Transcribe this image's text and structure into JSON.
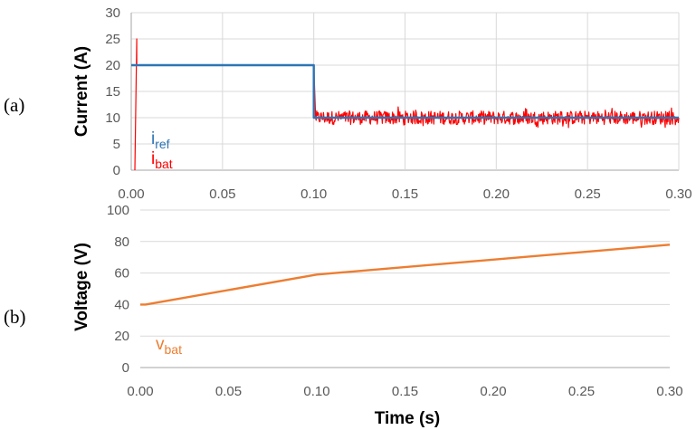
{
  "colors": {
    "i_ref": "#2E75B6",
    "i_bat": "#FF0000",
    "v_bat": "#ED7D31",
    "grid": "#D9D9D9",
    "axis": "#A6A6A6"
  },
  "chart_data": [
    {
      "type": "line",
      "panel_label": "(a)",
      "title": "",
      "xlabel": "",
      "ylabel": "Current (A)",
      "xlim": [
        0,
        0.3
      ],
      "ylim": [
        0,
        30
      ],
      "x_ticks": [
        "0.00",
        "0.05",
        "0.10",
        "0.15",
        "0.20",
        "0.25",
        "0.30"
      ],
      "y_ticks": [
        "0",
        "5",
        "10",
        "15",
        "20",
        "25",
        "30"
      ],
      "grid": true,
      "legend_placement": "bottom-left",
      "series": [
        {
          "name": "i",
          "name_sub": "ref",
          "color": "#2E75B6",
          "x": [
            0.0,
            0.1,
            0.1,
            0.3
          ],
          "y": [
            20,
            20,
            10,
            10
          ]
        },
        {
          "name": "i",
          "name_sub": "bat",
          "color": "#FF0000",
          "x": [
            0.002,
            0.002,
            0.003,
            0.003,
            0.1,
            0.101,
            0.3
          ],
          "y": [
            0,
            0,
            25,
            20,
            20,
            10,
            10
          ],
          "noise_band": [
            {
              "x_start": 0.003,
              "x_end": 0.03,
              "amplitude": 1.8
            },
            {
              "x_start": 0.03,
              "x_end": 0.1,
              "amplitude": 1.0
            },
            {
              "x_start": 0.1,
              "x_end": 0.3,
              "amplitude": 1.3
            }
          ]
        }
      ]
    },
    {
      "type": "line",
      "panel_label": "(b)",
      "title": "",
      "xlabel": "Time (s)",
      "ylabel": "Voltage (V)",
      "xlim": [
        0,
        0.3
      ],
      "ylim": [
        0,
        100
      ],
      "x_ticks": [
        "0.00",
        "0.05",
        "0.10",
        "0.15",
        "0.20",
        "0.25",
        "0.30"
      ],
      "y_ticks": [
        "0",
        "20",
        "40",
        "60",
        "80",
        "100"
      ],
      "grid": true,
      "legend_placement": "bottom-left",
      "series": [
        {
          "name": "v",
          "name_sub": "bat",
          "color": "#ED7D31",
          "x": [
            0.0,
            0.003,
            0.1,
            0.3
          ],
          "y": [
            40,
            40,
            59,
            78
          ]
        }
      ]
    }
  ]
}
